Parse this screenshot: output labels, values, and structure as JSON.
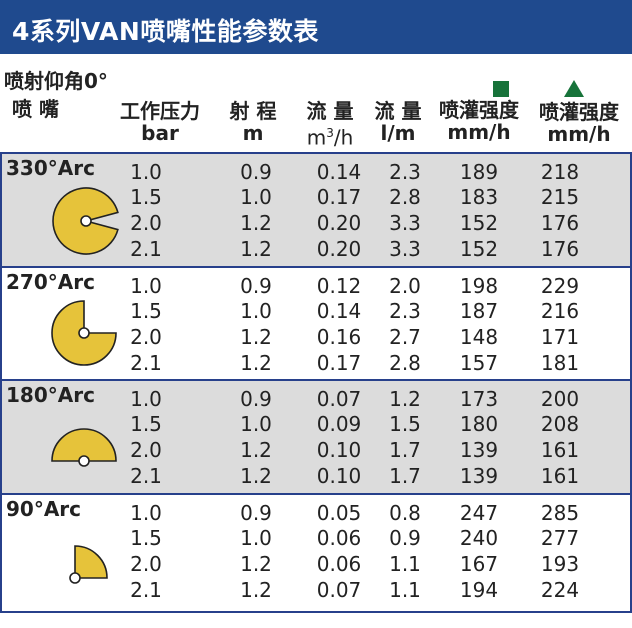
{
  "title": "4系列VAN喷嘴性能参数表",
  "trajectory_label": "喷射仰角0°",
  "headers": {
    "nozzle": "喷 嘴",
    "pressure_1": "工作压力",
    "pressure_2": "bar",
    "radius_1": "射 程",
    "radius_2": "m",
    "flow_m3_1": "流 量",
    "flow_m3_2_base": "m",
    "flow_m3_2_sup": "3",
    "flow_m3_2_tail": "/h",
    "flow_l_1": "流 量",
    "flow_l_2": "l/m",
    "precip_sq_1": "喷灌强度",
    "precip_sq_2": "mm/h",
    "precip_tri_1": "喷灌强度",
    "precip_tri_2": "mm/h"
  },
  "legend": {
    "square_color": "#17733a",
    "triangle_color": "#17733a"
  },
  "colors": {
    "title_bg": "#1f4a8e",
    "shade": "#dcdcdc",
    "arc_fill": "#e6c33a",
    "border": "#27408b"
  },
  "groups": [
    {
      "label": "330°Arc",
      "arc_degrees": 330,
      "shaded": true,
      "rows": [
        [
          "1.0",
          "0.9",
          "0.14",
          "2.3",
          "189",
          "218"
        ],
        [
          "1.5",
          "1.0",
          "0.17",
          "2.8",
          "183",
          "215"
        ],
        [
          "2.0",
          "1.2",
          "0.20",
          "3.3",
          "152",
          "176"
        ],
        [
          "2.1",
          "1.2",
          "0.20",
          "3.3",
          "152",
          "176"
        ]
      ]
    },
    {
      "label": "270°Arc",
      "arc_degrees": 270,
      "shaded": false,
      "rows": [
        [
          "1.0",
          "0.9",
          "0.12",
          "2.0",
          "198",
          "229"
        ],
        [
          "1.5",
          "1.0",
          "0.14",
          "2.3",
          "187",
          "216"
        ],
        [
          "2.0",
          "1.2",
          "0.16",
          "2.7",
          "148",
          "171"
        ],
        [
          "2.1",
          "1.2",
          "0.17",
          "2.8",
          "157",
          "181"
        ]
      ]
    },
    {
      "label": "180°Arc",
      "arc_degrees": 180,
      "shaded": true,
      "rows": [
        [
          "1.0",
          "0.9",
          "0.07",
          "1.2",
          "173",
          "200"
        ],
        [
          "1.5",
          "1.0",
          "0.09",
          "1.5",
          "180",
          "208"
        ],
        [
          "2.0",
          "1.2",
          "0.10",
          "1.7",
          "139",
          "161"
        ],
        [
          "2.1",
          "1.2",
          "0.10",
          "1.7",
          "139",
          "161"
        ]
      ]
    },
    {
      "label": "90°Arc",
      "arc_degrees": 90,
      "shaded": false,
      "rows": [
        [
          "1.0",
          "0.9",
          "0.05",
          "0.8",
          "247",
          "285"
        ],
        [
          "1.5",
          "1.0",
          "0.06",
          "0.9",
          "240",
          "277"
        ],
        [
          "2.0",
          "1.2",
          "0.06",
          "1.1",
          "167",
          "193"
        ],
        [
          "2.1",
          "1.2",
          "0.07",
          "1.1",
          "194",
          "224"
        ]
      ]
    }
  ]
}
